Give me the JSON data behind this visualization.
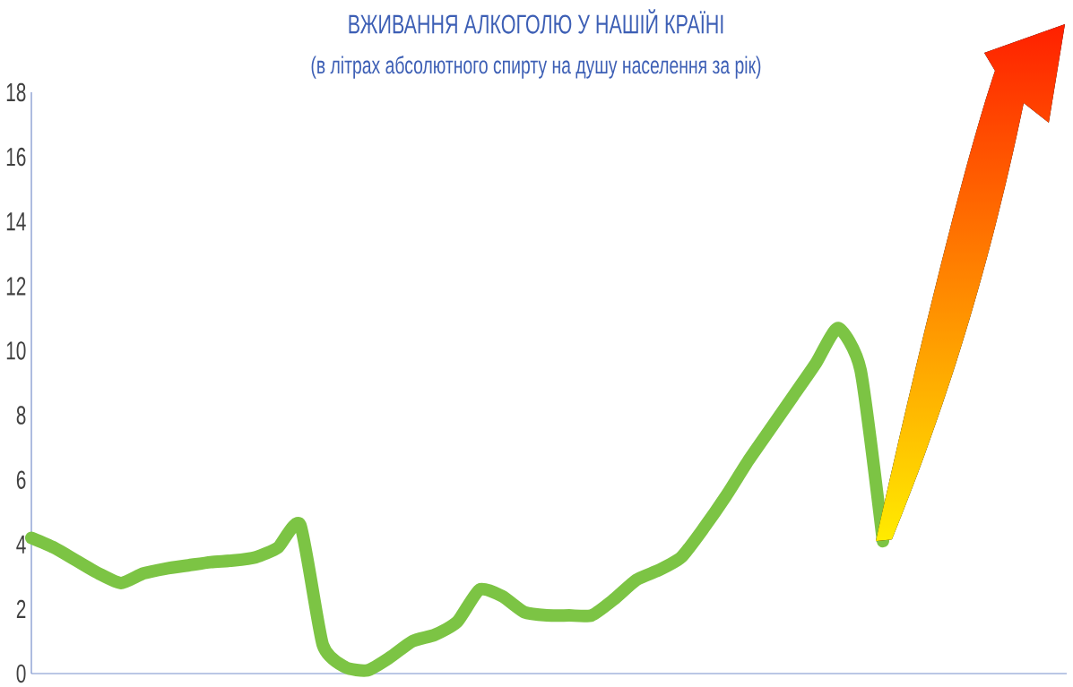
{
  "chart_data": {
    "type": "line",
    "title": "ВЖИВАННЯ  АЛКОГОЛЮ  У  НАШІЙ  КРАЇНІ",
    "subtitle": "(в літрах абсолютного спирту на душу населення за рік)",
    "categories": [
      null,
      null,
      null,
      null,
      null,
      null,
      null,
      null,
      null,
      null,
      null,
      null,
      null,
      null,
      null,
      null,
      null,
      null,
      null,
      null,
      null,
      null,
      null,
      null,
      null,
      null,
      null,
      null,
      null,
      null,
      null,
      null,
      null,
      null,
      null,
      null,
      null,
      null,
      null
    ],
    "values": [
      4.2,
      3.9,
      3.5,
      3.1,
      2.8,
      3.1,
      3.25,
      3.35,
      3.45,
      3.5,
      3.6,
      3.9,
      4.6,
      0.9,
      0.2,
      0.1,
      0.5,
      1.0,
      1.2,
      1.6,
      2.6,
      2.4,
      1.9,
      1.8,
      1.8,
      1.8,
      2.3,
      2.9,
      3.2,
      3.6,
      4.5,
      5.5,
      6.6,
      7.6,
      8.6,
      9.6,
      10.7,
      9.4,
      4.1
    ],
    "color": "#7cc444",
    "ylim": [
      0,
      18
    ],
    "yticks": [
      0,
      2,
      4,
      6,
      8,
      10,
      12,
      14,
      16,
      18
    ],
    "tick_labels": "y",
    "marker": "none",
    "line_style": "solid"
  }
}
